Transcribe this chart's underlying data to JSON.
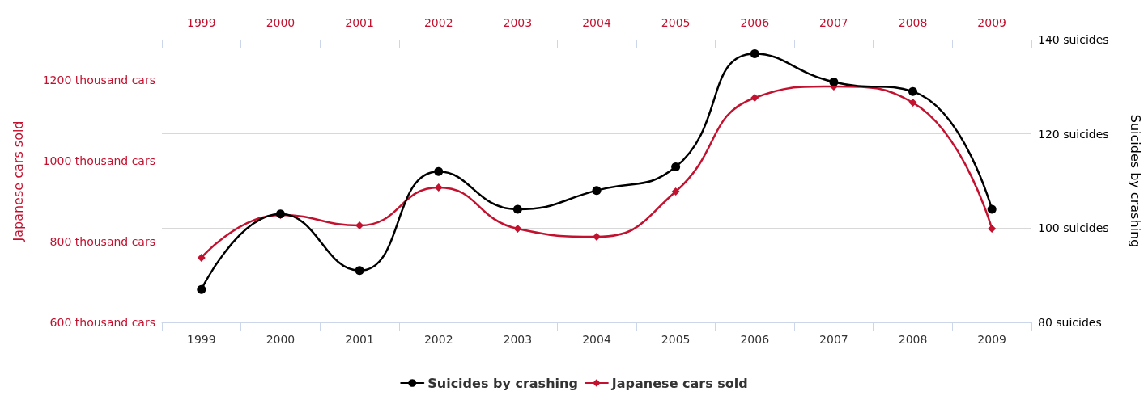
{
  "chart_data": {
    "type": "line",
    "categories": [
      "1999",
      "2000",
      "2001",
      "2002",
      "2003",
      "2004",
      "2005",
      "2006",
      "2007",
      "2008",
      "2009"
    ],
    "ylabel": "Japanese cars sold",
    "y2label": "Suicides by crashing",
    "ylim": [
      600,
      1300
    ],
    "yticks": [
      {
        "value": 600,
        "label": "600 thousand cars"
      },
      {
        "value": 800,
        "label": "800 thousand cars"
      },
      {
        "value": 1000,
        "label": "1000 thousand cars"
      },
      {
        "value": 1200,
        "label": "1200 thousand cars"
      }
    ],
    "y2lim": [
      80,
      140
    ],
    "y2ticks": [
      {
        "value": 80,
        "label": "80 suicides"
      },
      {
        "value": 100,
        "label": "100 suicides"
      },
      {
        "value": 120,
        "label": "120 suicides"
      },
      {
        "value": 140,
        "label": "140 suicides"
      }
    ],
    "series": [
      {
        "name": "Suicides by crashing",
        "color": "#000000",
        "axis": "y2",
        "marker": "circle",
        "values": [
          87,
          103,
          91,
          112,
          104,
          108,
          113,
          137,
          131,
          129,
          104
        ]
      },
      {
        "name": "Japanese cars sold",
        "color": "#c3122f",
        "marker": "diamond",
        "values": [
          760,
          866,
          840,
          934,
          832,
          812,
          924,
          1156,
          1184,
          1144,
          832
        ]
      }
    ],
    "grid": "y",
    "legend": "bottom",
    "line_style": "solid"
  }
}
